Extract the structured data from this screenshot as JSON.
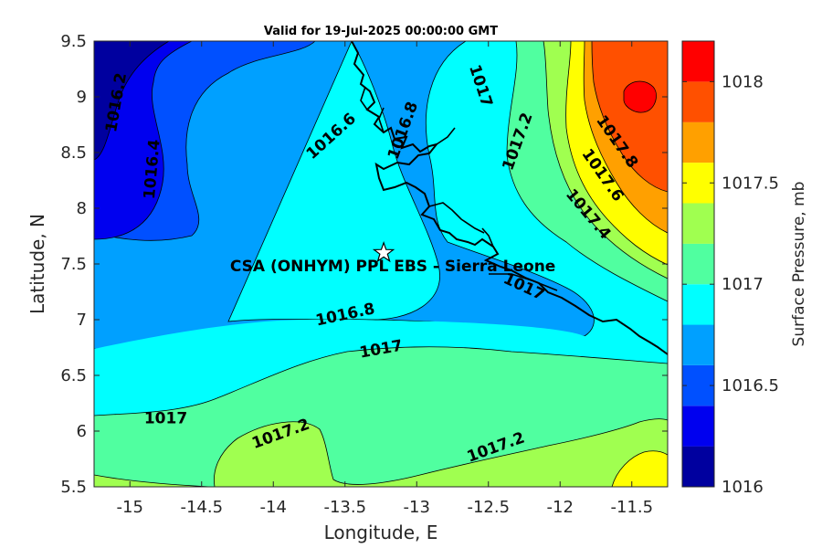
{
  "chart_data": {
    "type": "heatmap",
    "title": "Valid for 19-Jul-2025 00:00:00 GMT",
    "xlabel": "Longitude, E",
    "ylabel": "Latitude, N",
    "xlim": [
      -15.25,
      -11.25
    ],
    "ylim": [
      5.5,
      9.5
    ],
    "xticks": [
      -15,
      -14.5,
      -14,
      -13.5,
      -13,
      -12.5,
      -12,
      -11.5
    ],
    "xtick_labels": [
      "-15",
      "-14.5",
      "-14",
      "-13.5",
      "-13",
      "-12.5",
      "-12",
      "-11.5"
    ],
    "yticks": [
      5.5,
      6,
      6.5,
      7,
      7.5,
      8,
      8.5,
      9,
      9.5
    ],
    "ytick_labels": [
      "5.5",
      "6",
      "6.5",
      "7",
      "7.5",
      "8",
      "8.5",
      "9",
      "9.5"
    ],
    "colorbar": {
      "label": "Surface Pressure, mb",
      "range": [
        1016,
        1018.2
      ],
      "ticks": [
        1016,
        1016.5,
        1017,
        1017.5,
        1018
      ],
      "tick_labels": [
        "1016",
        "1016.5",
        "1017",
        "1017.5",
        "1018"
      ],
      "levels": [
        1016.0,
        1016.2,
        1016.4,
        1016.6,
        1016.8,
        1017.0,
        1017.2,
        1017.4,
        1017.6,
        1017.8,
        1018.0
      ],
      "colors": [
        "#00009f",
        "#0000ef",
        "#0050ff",
        "#00a0ff",
        "#00ffff",
        "#50ffa0",
        "#a0ff50",
        "#ffff00",
        "#ffa000",
        "#ff5000",
        "#ff0000",
        "#a00000"
      ]
    },
    "contour_labels": [
      {
        "text": "1016.2",
        "lon": -15.1,
        "lat": 8.95
      },
      {
        "text": "1016.4",
        "lon": -14.85,
        "lat": 8.35
      },
      {
        "text": "1016.6",
        "lon": -13.6,
        "lat": 8.65
      },
      {
        "text": "1016.8",
        "lon": -13.1,
        "lat": 8.7
      },
      {
        "text": "1017",
        "lon": -12.55,
        "lat": 9.1
      },
      {
        "text": "1017.2",
        "lon": -12.3,
        "lat": 8.6
      },
      {
        "text": "1017.8",
        "lon": -11.6,
        "lat": 8.6
      },
      {
        "text": "1017.6",
        "lon": -11.7,
        "lat": 8.3
      },
      {
        "text": "1017.4",
        "lon": -11.8,
        "lat": 7.95
      },
      {
        "text": "1017",
        "lon": -12.25,
        "lat": 7.3
      },
      {
        "text": "1016.8",
        "lon": -13.5,
        "lat": 7.05
      },
      {
        "text": "1017",
        "lon": -13.25,
        "lat": 6.74
      },
      {
        "text": "1017",
        "lon": -14.75,
        "lat": 6.12
      },
      {
        "text": "1017.2",
        "lon": -13.95,
        "lat": 5.98
      },
      {
        "text": "1017.2",
        "lon": -12.45,
        "lat": 5.86
      }
    ],
    "site": {
      "name": "CSA (ONHYM) PPL EBS  - Sierra Leone",
      "lon": -13.23,
      "lat": 7.6,
      "marker": "star"
    },
    "grid": false,
    "coastline": "Sierra Leone / Guinea coast, black line"
  }
}
